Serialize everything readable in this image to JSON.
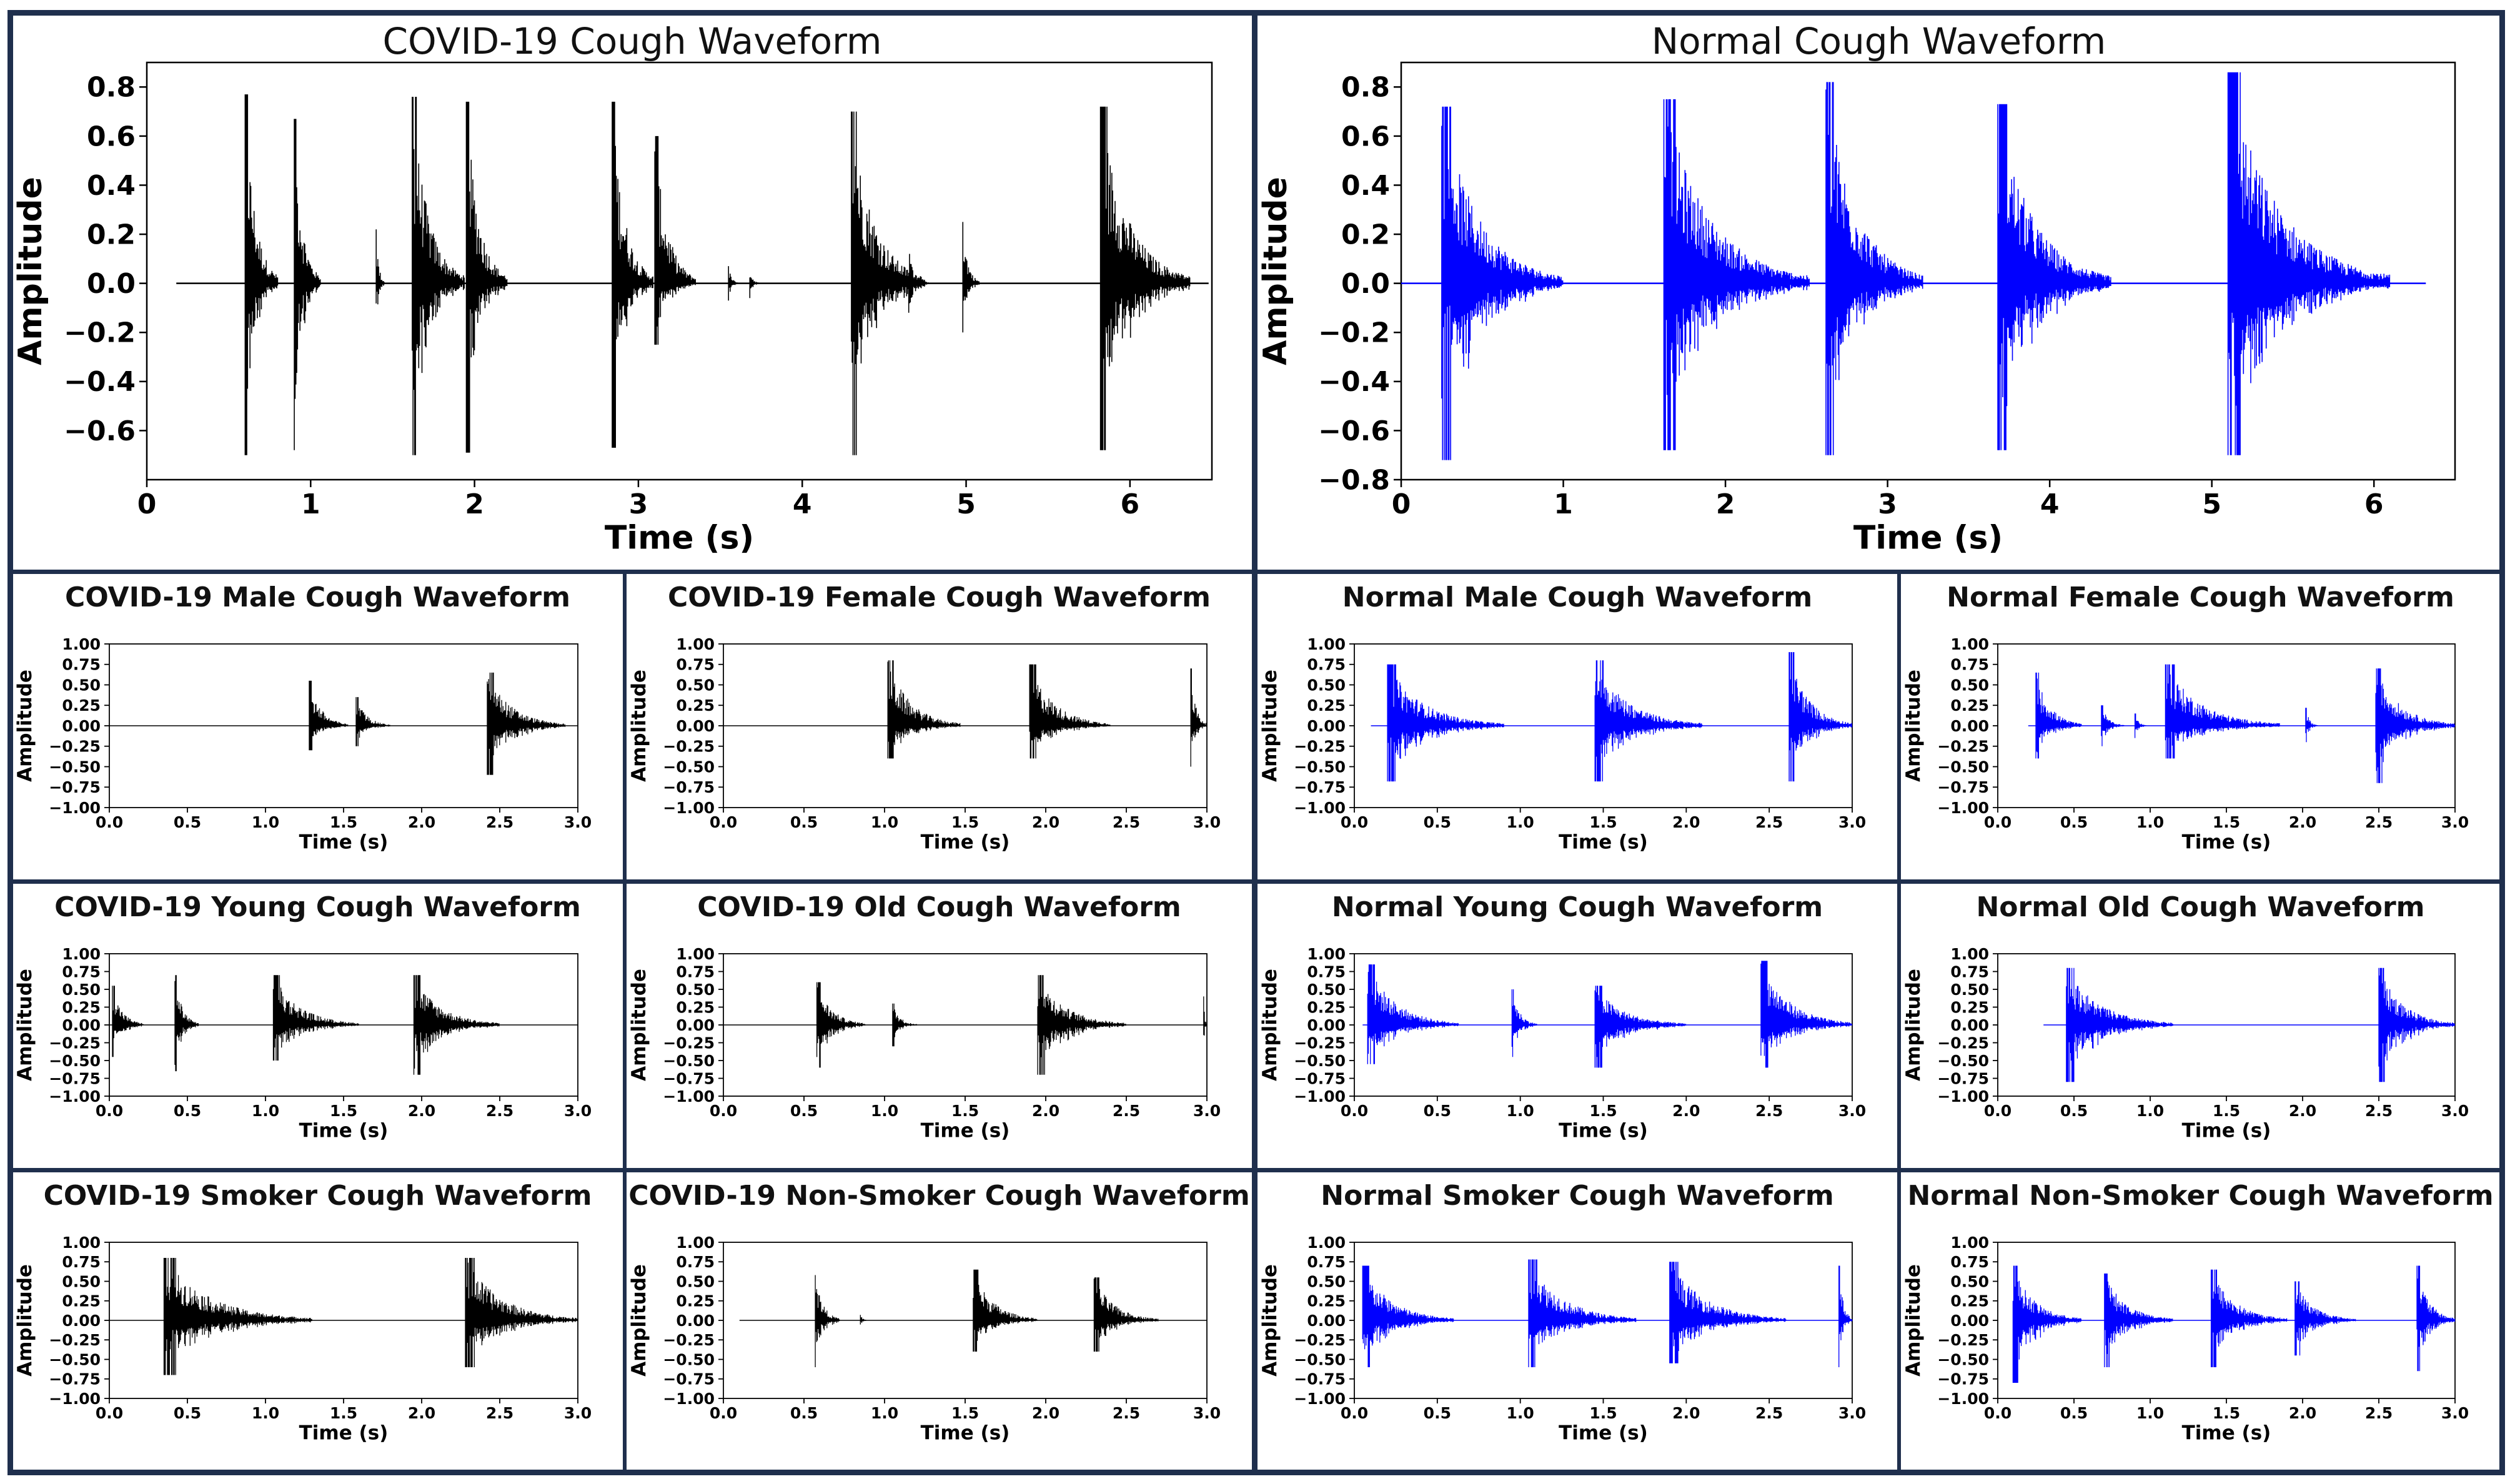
{
  "figure": {
    "colors": {
      "frame": "#1f2f4d",
      "covid": "#000000",
      "normal": "#0000ff"
    }
  },
  "chart_data": [
    {
      "id": "covid-main",
      "type": "line",
      "title": "COVID-19 Cough Waveform",
      "color": "#000000",
      "xlabel": "Time (s)",
      "ylabel": "Amplitude",
      "xlim": [
        0,
        6.5
      ],
      "ylim": [
        -0.8,
        0.9
      ],
      "xticks": [
        0,
        1,
        2,
        3,
        4,
        5,
        6
      ],
      "xtick_labels": [
        "0",
        "1",
        "2",
        "3",
        "4",
        "5",
        "6"
      ],
      "yticks": [
        -0.6,
        -0.4,
        -0.2,
        0.0,
        0.2,
        0.4,
        0.6,
        0.8
      ],
      "ytick_labels": [
        "−0.6",
        "−0.4",
        "−0.2",
        "0.0",
        "0.2",
        "0.4",
        "0.6",
        "0.8"
      ],
      "signal_range": [
        0.18,
        6.48
      ],
      "bursts": [
        {
          "t": 0.6,
          "dur": 0.2,
          "pos": 0.77,
          "neg": 0.7
        },
        {
          "t": 0.9,
          "dur": 0.16,
          "pos": 0.67,
          "neg": 0.68
        },
        {
          "t": 1.4,
          "dur": 0.05,
          "pos": 0.22,
          "neg": 0.23
        },
        {
          "t": 1.62,
          "dur": 0.32,
          "pos": 0.76,
          "neg": 0.7
        },
        {
          "t": 1.95,
          "dur": 0.25,
          "pos": 0.74,
          "neg": 0.69
        },
        {
          "t": 2.84,
          "dur": 0.25,
          "pos": 0.74,
          "neg": 0.67
        },
        {
          "t": 3.1,
          "dur": 0.25,
          "pos": 0.6,
          "neg": 0.25
        },
        {
          "t": 3.55,
          "dur": 0.06,
          "pos": 0.07,
          "neg": 0.07
        },
        {
          "t": 3.68,
          "dur": 0.06,
          "pos": 0.06,
          "neg": 0.06
        },
        {
          "t": 4.3,
          "dur": 0.45,
          "pos": 0.7,
          "neg": 0.7
        },
        {
          "t": 4.65,
          "dur": 0.12,
          "pos": 0.12,
          "neg": 0.12
        },
        {
          "t": 4.98,
          "dur": 0.1,
          "pos": 0.25,
          "neg": 0.2
        },
        {
          "t": 5.82,
          "dur": 0.55,
          "pos": 0.72,
          "neg": 0.68
        }
      ]
    },
    {
      "id": "normal-main",
      "type": "line",
      "title": "Normal Cough Waveform",
      "color": "#0000ff",
      "xlabel": "Time (s)",
      "ylabel": "Amplitude",
      "xlim": [
        0,
        6.5
      ],
      "ylim": [
        -0.8,
        0.9
      ],
      "xticks": [
        0,
        1,
        2,
        3,
        4,
        5,
        6
      ],
      "xtick_labels": [
        "0",
        "1",
        "2",
        "3",
        "4",
        "5",
        "6"
      ],
      "yticks": [
        -0.8,
        -0.6,
        -0.4,
        -0.2,
        0.0,
        0.2,
        0.4,
        0.6,
        0.8
      ],
      "ytick_labels": [
        "−0.8",
        "−0.6",
        "−0.4",
        "−0.2",
        "0.0",
        "0.2",
        "0.4",
        "0.6",
        "0.8"
      ],
      "signal_range": [
        0,
        6.32
      ],
      "bursts": [
        {
          "t": 0.25,
          "dur": 0.75,
          "pos": 0.72,
          "neg": 0.72
        },
        {
          "t": 1.62,
          "dur": 0.9,
          "pos": 0.75,
          "neg": 0.68
        },
        {
          "t": 2.62,
          "dur": 0.6,
          "pos": 0.82,
          "neg": 0.7
        },
        {
          "t": 3.68,
          "dur": 0.7,
          "pos": 0.73,
          "neg": 0.68
        },
        {
          "t": 5.1,
          "dur": 1.0,
          "pos": 0.86,
          "neg": 0.7
        }
      ]
    },
    {
      "id": "covid-male",
      "type": "line",
      "title": "COVID-19 Male Cough Waveform",
      "color": "#000000",
      "xlabel": "Time (s)",
      "ylabel": "Amplitude",
      "xlim": [
        0,
        3
      ],
      "ylim": [
        -1,
        1
      ],
      "xticks": [
        0,
        0.5,
        1,
        1.5,
        2,
        2.5,
        3
      ],
      "xtick_labels": [
        "0.0",
        "0.5",
        "1.0",
        "1.5",
        "2.0",
        "2.5",
        "3.0"
      ],
      "yticks": [
        -1,
        -0.75,
        -0.5,
        -0.25,
        0,
        0.25,
        0.5,
        0.75,
        1
      ],
      "ytick_labels": [
        "−1.00",
        "−0.75",
        "−0.50",
        "−0.25",
        "0.00",
        "0.25",
        "0.50",
        "0.75",
        "1.00"
      ],
      "signal_range": [
        0,
        3.0
      ],
      "bursts": [
        {
          "t": 1.28,
          "dur": 0.25,
          "pos": 0.55,
          "neg": 0.3
        },
        {
          "t": 1.58,
          "dur": 0.22,
          "pos": 0.35,
          "neg": 0.25
        },
        {
          "t": 2.42,
          "dur": 0.5,
          "pos": 0.65,
          "neg": 0.6
        }
      ]
    },
    {
      "id": "covid-female",
      "type": "line",
      "title": "COVID-19 Female Cough Waveform",
      "color": "#000000",
      "xlabel": "Time (s)",
      "ylabel": "Amplitude",
      "xlim": [
        0,
        3
      ],
      "ylim": [
        -1,
        1
      ],
      "xticks": [
        0,
        0.5,
        1,
        1.5,
        2,
        2.5,
        3
      ],
      "xtick_labels": [
        "0.0",
        "0.5",
        "1.0",
        "1.5",
        "2.0",
        "2.5",
        "3.0"
      ],
      "yticks": [
        -1,
        -0.75,
        -0.5,
        -0.25,
        0,
        0.25,
        0.5,
        0.75,
        1
      ],
      "ytick_labels": [
        "−1.00",
        "−0.75",
        "−0.50",
        "−0.25",
        "0.00",
        "0.25",
        "0.50",
        "0.75",
        "1.00"
      ],
      "signal_range": [
        0,
        3.0
      ],
      "bursts": [
        {
          "t": 1.02,
          "dur": 0.45,
          "pos": 0.8,
          "neg": 0.4
        },
        {
          "t": 1.9,
          "dur": 0.5,
          "pos": 0.75,
          "neg": 0.4
        },
        {
          "t": 2.9,
          "dur": 0.12,
          "pos": 0.7,
          "neg": 0.5
        }
      ]
    },
    {
      "id": "normal-male",
      "type": "line",
      "title": "Normal Male Cough Waveform",
      "color": "#0000ff",
      "xlabel": "Time (s)",
      "ylabel": "Amplitude",
      "xlim": [
        0,
        3
      ],
      "ylim": [
        -1,
        1
      ],
      "xticks": [
        0,
        0.5,
        1,
        1.5,
        2,
        2.5,
        3
      ],
      "xtick_labels": [
        "0.0",
        "0.5",
        "1.0",
        "1.5",
        "2.0",
        "2.5",
        "3.0"
      ],
      "yticks": [
        -1,
        -0.75,
        -0.5,
        -0.25,
        0,
        0.25,
        0.5,
        0.75,
        1
      ],
      "ytick_labels": [
        "−1.00",
        "−0.75",
        "−0.50",
        "−0.25",
        "0.00",
        "0.25",
        "0.50",
        "0.75",
        "1.00"
      ],
      "signal_range": [
        0.1,
        3.0
      ],
      "bursts": [
        {
          "t": 0.2,
          "dur": 0.7,
          "pos": 0.75,
          "neg": 0.68
        },
        {
          "t": 1.45,
          "dur": 0.65,
          "pos": 0.8,
          "neg": 0.68
        },
        {
          "t": 2.62,
          "dur": 0.38,
          "pos": 0.9,
          "neg": 0.68
        }
      ]
    },
    {
      "id": "normal-female",
      "type": "line",
      "title": "Normal Female Cough Waveform",
      "color": "#0000ff",
      "xlabel": "Time (s)",
      "ylabel": "Amplitude",
      "xlim": [
        0,
        3
      ],
      "ylim": [
        -1,
        1
      ],
      "xticks": [
        0,
        0.5,
        1,
        1.5,
        2,
        2.5,
        3
      ],
      "xtick_labels": [
        "0.0",
        "0.5",
        "1.0",
        "1.5",
        "2.0",
        "2.5",
        "3.0"
      ],
      "yticks": [
        -1,
        -0.75,
        -0.5,
        -0.25,
        0,
        0.25,
        0.5,
        0.75,
        1
      ],
      "ytick_labels": [
        "−1.00",
        "−0.75",
        "−0.50",
        "−0.25",
        "0.00",
        "0.25",
        "0.50",
        "0.75",
        "1.00"
      ],
      "signal_range": [
        0.2,
        3.0
      ],
      "bursts": [
        {
          "t": 0.25,
          "dur": 0.3,
          "pos": 0.65,
          "neg": 0.4
        },
        {
          "t": 0.68,
          "dur": 0.15,
          "pos": 0.25,
          "neg": 0.25
        },
        {
          "t": 0.9,
          "dur": 0.08,
          "pos": 0.15,
          "neg": 0.15
        },
        {
          "t": 1.1,
          "dur": 0.75,
          "pos": 0.75,
          "neg": 0.4
        },
        {
          "t": 2.02,
          "dur": 0.08,
          "pos": 0.22,
          "neg": 0.2
        },
        {
          "t": 2.48,
          "dur": 0.52,
          "pos": 0.7,
          "neg": 0.7
        }
      ]
    },
    {
      "id": "covid-young",
      "type": "line",
      "title": "COVID-19 Young Cough Waveform",
      "color": "#000000",
      "xlabel": "Time (s)",
      "ylabel": "Amplitude",
      "xlim": [
        0,
        3
      ],
      "ylim": [
        -1,
        1
      ],
      "xticks": [
        0,
        0.5,
        1,
        1.5,
        2,
        2.5,
        3
      ],
      "xtick_labels": [
        "0.0",
        "0.5",
        "1.0",
        "1.5",
        "2.0",
        "2.5",
        "3.0"
      ],
      "yticks": [
        -1,
        -0.75,
        -0.5,
        -0.25,
        0,
        0.25,
        0.5,
        0.75,
        1
      ],
      "ytick_labels": [
        "−1.00",
        "−0.75",
        "−0.50",
        "−0.25",
        "0.00",
        "0.25",
        "0.50",
        "0.75",
        "1.00"
      ],
      "signal_range": [
        0,
        3.0
      ],
      "bursts": [
        {
          "t": 0.02,
          "dur": 0.2,
          "pos": 0.55,
          "neg": 0.45
        },
        {
          "t": 0.42,
          "dur": 0.15,
          "pos": 0.7,
          "neg": 0.65
        },
        {
          "t": 1.05,
          "dur": 0.55,
          "pos": 0.7,
          "neg": 0.5
        },
        {
          "t": 1.95,
          "dur": 0.55,
          "pos": 0.7,
          "neg": 0.7
        }
      ]
    },
    {
      "id": "covid-old",
      "type": "line",
      "title": "COVID-19 Old Cough Waveform",
      "color": "#000000",
      "xlabel": "Time (s)",
      "ylabel": "Amplitude",
      "xlim": [
        0,
        3
      ],
      "ylim": [
        -1,
        1
      ],
      "xticks": [
        0,
        0.5,
        1,
        1.5,
        2,
        2.5,
        3
      ],
      "xtick_labels": [
        "0.0",
        "0.5",
        "1.0",
        "1.5",
        "2.0",
        "2.5",
        "3.0"
      ],
      "yticks": [
        -1,
        -0.75,
        -0.5,
        -0.25,
        0,
        0.25,
        0.5,
        0.75,
        1
      ],
      "ytick_labels": [
        "−1.00",
        "−0.75",
        "−0.50",
        "−0.25",
        "0.00",
        "0.25",
        "0.50",
        "0.75",
        "1.00"
      ],
      "signal_range": [
        0,
        3.0
      ],
      "bursts": [
        {
          "t": 0.58,
          "dur": 0.3,
          "pos": 0.6,
          "neg": 0.6
        },
        {
          "t": 1.05,
          "dur": 0.15,
          "pos": 0.3,
          "neg": 0.3
        },
        {
          "t": 1.95,
          "dur": 0.55,
          "pos": 0.7,
          "neg": 0.7
        },
        {
          "t": 2.98,
          "dur": 0.05,
          "pos": 0.4,
          "neg": 0.4
        }
      ]
    },
    {
      "id": "normal-young",
      "type": "line",
      "title": "Normal Young Cough Waveform",
      "color": "#0000ff",
      "xlabel": "Time (s)",
      "ylabel": "Amplitude",
      "xlim": [
        0,
        3
      ],
      "ylim": [
        -1,
        1
      ],
      "xticks": [
        0,
        0.5,
        1,
        1.5,
        2,
        2.5,
        3
      ],
      "xtick_labels": [
        "0.0",
        "0.5",
        "1.0",
        "1.5",
        "2.0",
        "2.5",
        "3.0"
      ],
      "yticks": [
        -1,
        -0.75,
        -0.5,
        -0.25,
        0,
        0.25,
        0.5,
        0.75,
        1
      ],
      "ytick_labels": [
        "−1.00",
        "−0.75",
        "−0.50",
        "−0.25",
        "0.00",
        "0.25",
        "0.50",
        "0.75",
        "1.00"
      ],
      "signal_range": [
        0.05,
        3.0
      ],
      "bursts": [
        {
          "t": 0.08,
          "dur": 0.55,
          "pos": 0.85,
          "neg": 0.55
        },
        {
          "t": 0.95,
          "dur": 0.15,
          "pos": 0.5,
          "neg": 0.45
        },
        {
          "t": 1.45,
          "dur": 0.55,
          "pos": 0.55,
          "neg": 0.6
        },
        {
          "t": 2.45,
          "dur": 0.55,
          "pos": 0.9,
          "neg": 0.6
        }
      ]
    },
    {
      "id": "normal-old",
      "type": "line",
      "title": "Normal Old Cough Waveform",
      "color": "#0000ff",
      "xlabel": "Time (s)",
      "ylabel": "Amplitude",
      "xlim": [
        0,
        3
      ],
      "ylim": [
        -1,
        1
      ],
      "xticks": [
        0,
        0.5,
        1,
        1.5,
        2,
        2.5,
        3
      ],
      "xtick_labels": [
        "0.0",
        "0.5",
        "1.0",
        "1.5",
        "2.0",
        "2.5",
        "3.0"
      ],
      "yticks": [
        -1,
        -0.75,
        -0.5,
        -0.25,
        0,
        0.25,
        0.5,
        0.75,
        1
      ],
      "ytick_labels": [
        "−1.00",
        "−0.75",
        "−0.50",
        "−0.25",
        "0.00",
        "0.25",
        "0.50",
        "0.75",
        "1.00"
      ],
      "signal_range": [
        0.3,
        3.0
      ],
      "bursts": [
        {
          "t": 0.45,
          "dur": 0.7,
          "pos": 0.8,
          "neg": 0.8
        },
        {
          "t": 2.5,
          "dur": 0.5,
          "pos": 0.8,
          "neg": 0.8
        }
      ]
    },
    {
      "id": "covid-smoker",
      "type": "line",
      "title": "COVID-19 Smoker Cough Waveform",
      "color": "#000000",
      "xlabel": "Time (s)",
      "ylabel": "Amplitude",
      "xlim": [
        0,
        3
      ],
      "ylim": [
        -1,
        1
      ],
      "xticks": [
        0,
        0.5,
        1,
        1.5,
        2,
        2.5,
        3
      ],
      "xtick_labels": [
        "0.0",
        "0.5",
        "1.0",
        "1.5",
        "2.0",
        "2.5",
        "3.0"
      ],
      "yticks": [
        -1,
        -0.75,
        -0.5,
        -0.25,
        0,
        0.25,
        0.5,
        0.75,
        1
      ],
      "ytick_labels": [
        "−1.00",
        "−0.75",
        "−0.50",
        "−0.25",
        "0.00",
        "0.25",
        "0.50",
        "0.75",
        "1.00"
      ],
      "signal_range": [
        0,
        3.0
      ],
      "bursts": [
        {
          "t": 0.35,
          "dur": 0.95,
          "pos": 0.8,
          "neg": 0.7
        },
        {
          "t": 2.28,
          "dur": 0.72,
          "pos": 0.8,
          "neg": 0.6
        }
      ]
    },
    {
      "id": "covid-nonsmoker",
      "type": "line",
      "title": "COVID-19 Non-Smoker Cough Waveform",
      "color": "#000000",
      "xlabel": "Time (s)",
      "ylabel": "Amplitude",
      "xlim": [
        0,
        3
      ],
      "ylim": [
        -1,
        1
      ],
      "xticks": [
        0,
        0.5,
        1,
        1.5,
        2,
        2.5,
        3
      ],
      "xtick_labels": [
        "0.0",
        "0.5",
        "1.0",
        "1.5",
        "2.0",
        "2.5",
        "3.0"
      ],
      "yticks": [
        -1,
        -0.75,
        -0.5,
        -0.25,
        0,
        0.25,
        0.5,
        0.75,
        1
      ],
      "ytick_labels": [
        "−1.00",
        "−0.75",
        "−0.50",
        "−0.25",
        "0.00",
        "0.25",
        "0.50",
        "0.75",
        "1.00"
      ],
      "signal_range": [
        0.1,
        3.0
      ],
      "bursts": [
        {
          "t": 0.57,
          "dur": 0.15,
          "pos": 0.6,
          "neg": 0.6
        },
        {
          "t": 0.85,
          "dur": 0.05,
          "pos": 0.07,
          "neg": 0.07
        },
        {
          "t": 1.55,
          "dur": 0.4,
          "pos": 0.65,
          "neg": 0.4
        },
        {
          "t": 2.3,
          "dur": 0.4,
          "pos": 0.55,
          "neg": 0.4
        }
      ]
    },
    {
      "id": "normal-smoker",
      "type": "line",
      "title": "Normal Smoker Cough Waveform",
      "color": "#0000ff",
      "xlabel": "Time (s)",
      "ylabel": "Amplitude",
      "xlim": [
        0,
        3
      ],
      "ylim": [
        -1,
        1
      ],
      "xticks": [
        0,
        0.5,
        1,
        1.5,
        2,
        2.5,
        3
      ],
      "xtick_labels": [
        "0.0",
        "0.5",
        "1.0",
        "1.5",
        "2.0",
        "2.5",
        "3.0"
      ],
      "yticks": [
        -1,
        -0.75,
        -0.5,
        -0.25,
        0,
        0.25,
        0.5,
        0.75,
        1
      ],
      "ytick_labels": [
        "−1.00",
        "−0.75",
        "−0.50",
        "−0.25",
        "0.00",
        "0.25",
        "0.50",
        "0.75",
        "1.00"
      ],
      "signal_range": [
        0.05,
        3.0
      ],
      "bursts": [
        {
          "t": 0.05,
          "dur": 0.55,
          "pos": 0.7,
          "neg": 0.6
        },
        {
          "t": 1.05,
          "dur": 0.65,
          "pos": 0.78,
          "neg": 0.6
        },
        {
          "t": 1.9,
          "dur": 0.7,
          "pos": 0.75,
          "neg": 0.55
        },
        {
          "t": 2.92,
          "dur": 0.08,
          "pos": 0.7,
          "neg": 0.6
        }
      ]
    },
    {
      "id": "normal-nonsmoker",
      "type": "line",
      "title": "Normal Non-Smoker Cough Waveform",
      "color": "#0000ff",
      "xlabel": "Time (s)",
      "ylabel": "Amplitude",
      "xlim": [
        0,
        3
      ],
      "ylim": [
        -1,
        1
      ],
      "xticks": [
        0,
        0.5,
        1,
        1.5,
        2,
        2.5,
        3
      ],
      "xtick_labels": [
        "0.0",
        "0.5",
        "1.0",
        "1.5",
        "2.0",
        "2.5",
        "3.0"
      ],
      "yticks": [
        -1,
        -0.75,
        -0.5,
        -0.25,
        0,
        0.25,
        0.5,
        0.75,
        1
      ],
      "ytick_labels": [
        "−1.00",
        "−0.75",
        "−0.50",
        "−0.25",
        "0.00",
        "0.25",
        "0.50",
        "0.75",
        "1.00"
      ],
      "signal_range": [
        0.1,
        3.0
      ],
      "bursts": [
        {
          "t": 0.1,
          "dur": 0.45,
          "pos": 0.7,
          "neg": 0.8
        },
        {
          "t": 0.7,
          "dur": 0.45,
          "pos": 0.6,
          "neg": 0.6
        },
        {
          "t": 1.4,
          "dur": 0.5,
          "pos": 0.65,
          "neg": 0.6
        },
        {
          "t": 1.95,
          "dur": 0.4,
          "pos": 0.5,
          "neg": 0.45
        },
        {
          "t": 2.75,
          "dur": 0.25,
          "pos": 0.7,
          "neg": 0.65
        }
      ]
    }
  ]
}
